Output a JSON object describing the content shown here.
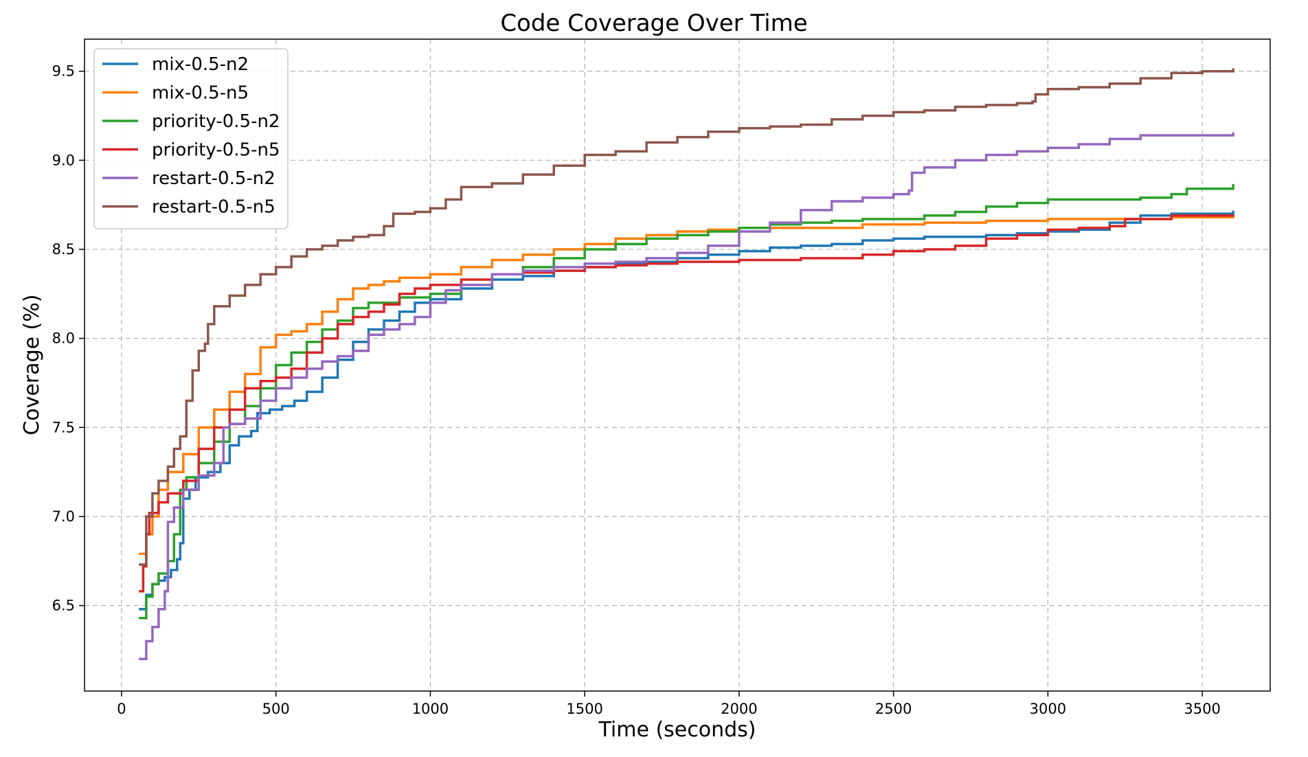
{
  "chart_data": {
    "type": "line",
    "title": "Code Coverage Over Time",
    "xlabel": "Time (seconds)",
    "ylabel": "Coverage (%)",
    "xlim": [
      -120,
      3720
    ],
    "ylim": [
      6.02,
      9.68
    ],
    "xticks": [
      0,
      500,
      1000,
      1500,
      2000,
      2500,
      3000,
      3500
    ],
    "xtick_labels": [
      "0",
      "500",
      "1000",
      "1500",
      "2000",
      "2500",
      "3000",
      "3500"
    ],
    "yticks": [
      6.5,
      7.0,
      7.5,
      8.0,
      8.5,
      9.0,
      9.5
    ],
    "ytick_labels": [
      "6.5",
      "7.0",
      "7.5",
      "8.0",
      "8.5",
      "9.0",
      "9.5"
    ],
    "grid": true,
    "legend_position": "upper-left",
    "series": [
      {
        "name": "mix-0.5-n2",
        "color": "#1f77b4",
        "points": [
          [
            60,
            6.48
          ],
          [
            80,
            6.56
          ],
          [
            100,
            6.62
          ],
          [
            120,
            6.64
          ],
          [
            140,
            6.66
          ],
          [
            160,
            6.7
          ],
          [
            180,
            6.76
          ],
          [
            190,
            6.85
          ],
          [
            200,
            7.1
          ],
          [
            220,
            7.15
          ],
          [
            240,
            7.22
          ],
          [
            280,
            7.25
          ],
          [
            320,
            7.3
          ],
          [
            350,
            7.4
          ],
          [
            380,
            7.45
          ],
          [
            420,
            7.48
          ],
          [
            440,
            7.58
          ],
          [
            480,
            7.6
          ],
          [
            520,
            7.62
          ],
          [
            560,
            7.65
          ],
          [
            600,
            7.7
          ],
          [
            650,
            7.78
          ],
          [
            700,
            7.88
          ],
          [
            750,
            7.98
          ],
          [
            800,
            8.05
          ],
          [
            850,
            8.1
          ],
          [
            900,
            8.15
          ],
          [
            950,
            8.2
          ],
          [
            1000,
            8.22
          ],
          [
            1100,
            8.28
          ],
          [
            1200,
            8.33
          ],
          [
            1300,
            8.35
          ],
          [
            1400,
            8.38
          ],
          [
            1500,
            8.4
          ],
          [
            1600,
            8.42
          ],
          [
            1700,
            8.43
          ],
          [
            1800,
            8.45
          ],
          [
            1900,
            8.47
          ],
          [
            2000,
            8.49
          ],
          [
            2100,
            8.51
          ],
          [
            2200,
            8.52
          ],
          [
            2300,
            8.53
          ],
          [
            2400,
            8.55
          ],
          [
            2500,
            8.56
          ],
          [
            2600,
            8.57
          ],
          [
            2700,
            8.57
          ],
          [
            2800,
            8.58
          ],
          [
            2900,
            8.59
          ],
          [
            3000,
            8.6
          ],
          [
            3100,
            8.61
          ],
          [
            3200,
            8.65
          ],
          [
            3300,
            8.69
          ],
          [
            3400,
            8.7
          ],
          [
            3600,
            8.71
          ]
        ]
      },
      {
        "name": "mix-0.5-n5",
        "color": "#ff7f0e",
        "points": [
          [
            60,
            6.79
          ],
          [
            80,
            6.9
          ],
          [
            100,
            7.0
          ],
          [
            120,
            7.15
          ],
          [
            150,
            7.25
          ],
          [
            200,
            7.35
          ],
          [
            250,
            7.5
          ],
          [
            300,
            7.6
          ],
          [
            350,
            7.7
          ],
          [
            400,
            7.8
          ],
          [
            450,
            7.95
          ],
          [
            500,
            8.02
          ],
          [
            550,
            8.04
          ],
          [
            600,
            8.08
          ],
          [
            650,
            8.15
          ],
          [
            700,
            8.22
          ],
          [
            750,
            8.28
          ],
          [
            800,
            8.3
          ],
          [
            850,
            8.32
          ],
          [
            900,
            8.34
          ],
          [
            1000,
            8.36
          ],
          [
            1100,
            8.4
          ],
          [
            1200,
            8.44
          ],
          [
            1300,
            8.47
          ],
          [
            1400,
            8.5
          ],
          [
            1500,
            8.53
          ],
          [
            1600,
            8.56
          ],
          [
            1700,
            8.58
          ],
          [
            1800,
            8.6
          ],
          [
            1900,
            8.61
          ],
          [
            2000,
            8.62
          ],
          [
            2200,
            8.62
          ],
          [
            2400,
            8.64
          ],
          [
            2600,
            8.65
          ],
          [
            2800,
            8.66
          ],
          [
            3000,
            8.67
          ],
          [
            3200,
            8.67
          ],
          [
            3400,
            8.68
          ],
          [
            3600,
            8.68
          ]
        ]
      },
      {
        "name": "priority-0.5-n2",
        "color": "#2ca02c",
        "points": [
          [
            60,
            6.43
          ],
          [
            80,
            6.55
          ],
          [
            100,
            6.62
          ],
          [
            120,
            6.68
          ],
          [
            150,
            6.75
          ],
          [
            170,
            6.9
          ],
          [
            190,
            7.15
          ],
          [
            210,
            7.22
          ],
          [
            250,
            7.3
          ],
          [
            300,
            7.42
          ],
          [
            350,
            7.52
          ],
          [
            400,
            7.62
          ],
          [
            450,
            7.72
          ],
          [
            500,
            7.85
          ],
          [
            550,
            7.92
          ],
          [
            600,
            7.98
          ],
          [
            650,
            8.05
          ],
          [
            700,
            8.1
          ],
          [
            750,
            8.17
          ],
          [
            800,
            8.2
          ],
          [
            900,
            8.23
          ],
          [
            1000,
            8.25
          ],
          [
            1100,
            8.3
          ],
          [
            1200,
            8.36
          ],
          [
            1300,
            8.4
          ],
          [
            1400,
            8.45
          ],
          [
            1500,
            8.5
          ],
          [
            1600,
            8.53
          ],
          [
            1700,
            8.56
          ],
          [
            1800,
            8.58
          ],
          [
            1900,
            8.6
          ],
          [
            2000,
            8.62
          ],
          [
            2100,
            8.64
          ],
          [
            2200,
            8.65
          ],
          [
            2300,
            8.66
          ],
          [
            2400,
            8.67
          ],
          [
            2500,
            8.67
          ],
          [
            2600,
            8.69
          ],
          [
            2700,
            8.71
          ],
          [
            2800,
            8.74
          ],
          [
            2900,
            8.76
          ],
          [
            3000,
            8.78
          ],
          [
            3200,
            8.78
          ],
          [
            3300,
            8.79
          ],
          [
            3400,
            8.81
          ],
          [
            3450,
            8.84
          ],
          [
            3600,
            8.86
          ]
        ]
      },
      {
        "name": "priority-0.5-n5",
        "color": "#d62728",
        "points": [
          [
            60,
            6.58
          ],
          [
            70,
            6.72
          ],
          [
            80,
            6.9
          ],
          [
            90,
            7.02
          ],
          [
            120,
            7.08
          ],
          [
            150,
            7.13
          ],
          [
            200,
            7.2
          ],
          [
            250,
            7.38
          ],
          [
            300,
            7.5
          ],
          [
            350,
            7.6
          ],
          [
            400,
            7.72
          ],
          [
            450,
            7.76
          ],
          [
            500,
            7.78
          ],
          [
            550,
            7.83
          ],
          [
            600,
            7.92
          ],
          [
            650,
            8.0
          ],
          [
            700,
            8.08
          ],
          [
            750,
            8.12
          ],
          [
            800,
            8.15
          ],
          [
            850,
            8.19
          ],
          [
            900,
            8.25
          ],
          [
            950,
            8.28
          ],
          [
            1000,
            8.3
          ],
          [
            1100,
            8.33
          ],
          [
            1200,
            8.36
          ],
          [
            1300,
            8.37
          ],
          [
            1400,
            8.38
          ],
          [
            1500,
            8.4
          ],
          [
            1600,
            8.41
          ],
          [
            1700,
            8.42
          ],
          [
            1800,
            8.43
          ],
          [
            1900,
            8.43
          ],
          [
            2000,
            8.44
          ],
          [
            2200,
            8.45
          ],
          [
            2400,
            8.47
          ],
          [
            2500,
            8.49
          ],
          [
            2600,
            8.5
          ],
          [
            2700,
            8.52
          ],
          [
            2800,
            8.56
          ],
          [
            2900,
            8.58
          ],
          [
            3000,
            8.61
          ],
          [
            3100,
            8.62
          ],
          [
            3200,
            8.63
          ],
          [
            3250,
            8.67
          ],
          [
            3400,
            8.69
          ],
          [
            3600,
            8.69
          ]
        ]
      },
      {
        "name": "restart-0.5-n2",
        "color": "#9467bd",
        "points": [
          [
            60,
            6.2
          ],
          [
            80,
            6.3
          ],
          [
            100,
            6.38
          ],
          [
            120,
            6.48
          ],
          [
            140,
            6.58
          ],
          [
            150,
            6.97
          ],
          [
            170,
            7.05
          ],
          [
            200,
            7.15
          ],
          [
            250,
            7.23
          ],
          [
            300,
            7.3
          ],
          [
            330,
            7.5
          ],
          [
            350,
            7.52
          ],
          [
            400,
            7.55
          ],
          [
            450,
            7.65
          ],
          [
            500,
            7.72
          ],
          [
            550,
            7.78
          ],
          [
            600,
            7.83
          ],
          [
            650,
            7.87
          ],
          [
            700,
            7.9
          ],
          [
            750,
            7.93
          ],
          [
            800,
            8.02
          ],
          [
            850,
            8.05
          ],
          [
            900,
            8.08
          ],
          [
            950,
            8.12
          ],
          [
            1000,
            8.2
          ],
          [
            1050,
            8.27
          ],
          [
            1100,
            8.3
          ],
          [
            1200,
            8.36
          ],
          [
            1300,
            8.38
          ],
          [
            1400,
            8.4
          ],
          [
            1500,
            8.42
          ],
          [
            1600,
            8.43
          ],
          [
            1700,
            8.45
          ],
          [
            1800,
            8.48
          ],
          [
            1900,
            8.52
          ],
          [
            2000,
            8.6
          ],
          [
            2100,
            8.65
          ],
          [
            2200,
            8.72
          ],
          [
            2300,
            8.77
          ],
          [
            2400,
            8.79
          ],
          [
            2500,
            8.81
          ],
          [
            2550,
            8.83
          ],
          [
            2560,
            8.93
          ],
          [
            2600,
            8.96
          ],
          [
            2700,
            9.0
          ],
          [
            2800,
            9.03
          ],
          [
            2900,
            9.05
          ],
          [
            3000,
            9.07
          ],
          [
            3100,
            9.09
          ],
          [
            3200,
            9.12
          ],
          [
            3300,
            9.14
          ],
          [
            3400,
            9.14
          ],
          [
            3500,
            9.14
          ],
          [
            3600,
            9.15
          ]
        ]
      },
      {
        "name": "restart-0.5-n5",
        "color": "#8c564b",
        "points": [
          [
            60,
            6.73
          ],
          [
            80,
            7.0
          ],
          [
            100,
            7.13
          ],
          [
            120,
            7.2
          ],
          [
            150,
            7.28
          ],
          [
            170,
            7.38
          ],
          [
            190,
            7.45
          ],
          [
            210,
            7.65
          ],
          [
            230,
            7.82
          ],
          [
            250,
            7.93
          ],
          [
            270,
            7.97
          ],
          [
            280,
            8.08
          ],
          [
            300,
            8.18
          ],
          [
            350,
            8.24
          ],
          [
            400,
            8.3
          ],
          [
            450,
            8.36
          ],
          [
            500,
            8.4
          ],
          [
            550,
            8.46
          ],
          [
            600,
            8.5
          ],
          [
            650,
            8.52
          ],
          [
            700,
            8.55
          ],
          [
            750,
            8.57
          ],
          [
            800,
            8.58
          ],
          [
            850,
            8.63
          ],
          [
            880,
            8.7
          ],
          [
            950,
            8.71
          ],
          [
            1000,
            8.73
          ],
          [
            1050,
            8.78
          ],
          [
            1100,
            8.85
          ],
          [
            1200,
            8.87
          ],
          [
            1300,
            8.92
          ],
          [
            1400,
            8.97
          ],
          [
            1500,
            9.03
          ],
          [
            1600,
            9.05
          ],
          [
            1700,
            9.1
          ],
          [
            1800,
            9.13
          ],
          [
            1900,
            9.16
          ],
          [
            2000,
            9.18
          ],
          [
            2100,
            9.19
          ],
          [
            2200,
            9.2
          ],
          [
            2300,
            9.23
          ],
          [
            2400,
            9.25
          ],
          [
            2500,
            9.27
          ],
          [
            2600,
            9.28
          ],
          [
            2700,
            9.3
          ],
          [
            2800,
            9.31
          ],
          [
            2900,
            9.32
          ],
          [
            2950,
            9.33
          ],
          [
            2960,
            9.37
          ],
          [
            3000,
            9.4
          ],
          [
            3100,
            9.41
          ],
          [
            3200,
            9.43
          ],
          [
            3300,
            9.46
          ],
          [
            3400,
            9.49
          ],
          [
            3500,
            9.5
          ],
          [
            3600,
            9.51
          ]
        ]
      }
    ]
  }
}
